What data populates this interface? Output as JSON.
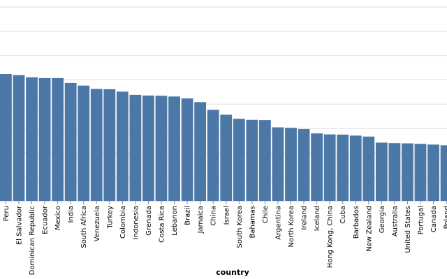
{
  "chart_data": {
    "type": "bar",
    "xlabel": "country",
    "ylabel": "",
    "title": "",
    "ylim": [
      0,
      8
    ],
    "grid": true,
    "bar_color": "#4c78a8",
    "categories": [
      "Peru",
      "El Salvador",
      "Dominican Republic",
      "Ecuador",
      "Mexico",
      "India",
      "South Africa",
      "Venezuela",
      "Turkey",
      "Colombia",
      "Indonesia",
      "Grenada",
      "Costa Rica",
      "Lebanon",
      "Brazil",
      "Jamaica",
      "China",
      "Israel",
      "South Korea",
      "Bahamas",
      "Chile",
      "Argentina",
      "North Korea",
      "Ireland",
      "Iceland",
      "Hong Kong, China",
      "Cuba",
      "Barbados",
      "New Zealand",
      "Georgia",
      "Australia",
      "United States",
      "Portugal",
      "Canada",
      "Poland"
    ],
    "values": [
      5.23,
      5.18,
      5.09,
      5.06,
      5.06,
      4.86,
      4.75,
      4.61,
      4.6,
      4.5,
      4.37,
      4.34,
      4.33,
      4.3,
      4.22,
      4.07,
      3.75,
      3.55,
      3.38,
      3.34,
      3.33,
      3.03,
      3.01,
      2.96,
      2.78,
      2.74,
      2.73,
      2.69,
      2.65,
      2.4,
      2.38,
      2.37,
      2.35,
      2.32,
      2.29
    ]
  }
}
